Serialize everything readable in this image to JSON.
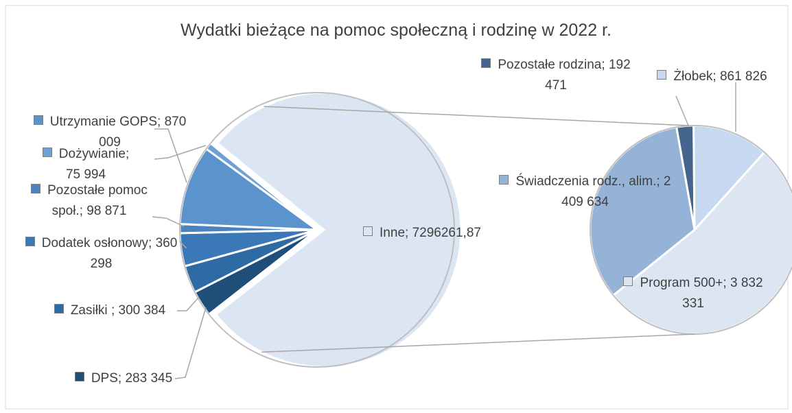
{
  "chart_data": [
    {
      "type": "pie",
      "title": "Wydatki bieżące na pomoc społeczną i rodzinę w 2022 r.",
      "label_separator": ";",
      "categories": [
        "DPS",
        "Zasiłki ",
        "Dodatek osłonowy",
        "Pozostałe pomoc społ.",
        "Utrzymanie GOPS",
        "Dożywianie",
        "Inne"
      ],
      "values": [
        283345,
        300384,
        360298,
        98871,
        870009,
        75994,
        7296261.87
      ],
      "value_labels": [
        "283 345",
        "300 384",
        "360 298",
        "98 871",
        "870 009",
        "75 994",
        "7296261,87"
      ],
      "colors": [
        "#1f4e79",
        "#2e6aa3",
        "#3a78b8",
        "#4a83c0",
        "#5b93cc",
        "#6fa0d2",
        "#dce6f2"
      ]
    },
    {
      "type": "pie",
      "label_separator": ";",
      "categories": [
        "Pozostałe rodzina",
        "Żłobek",
        "Program 500+",
        "Świadczenia rodz., alim."
      ],
      "values": [
        192471,
        861826,
        3832331,
        2409634
      ],
      "value_labels": [
        "192 471",
        "861 826",
        "3 832 331",
        "2 409 634"
      ],
      "colors": [
        "#44658e",
        "#c6d9f1",
        "#dce6f2",
        "#95b3d7"
      ]
    }
  ]
}
